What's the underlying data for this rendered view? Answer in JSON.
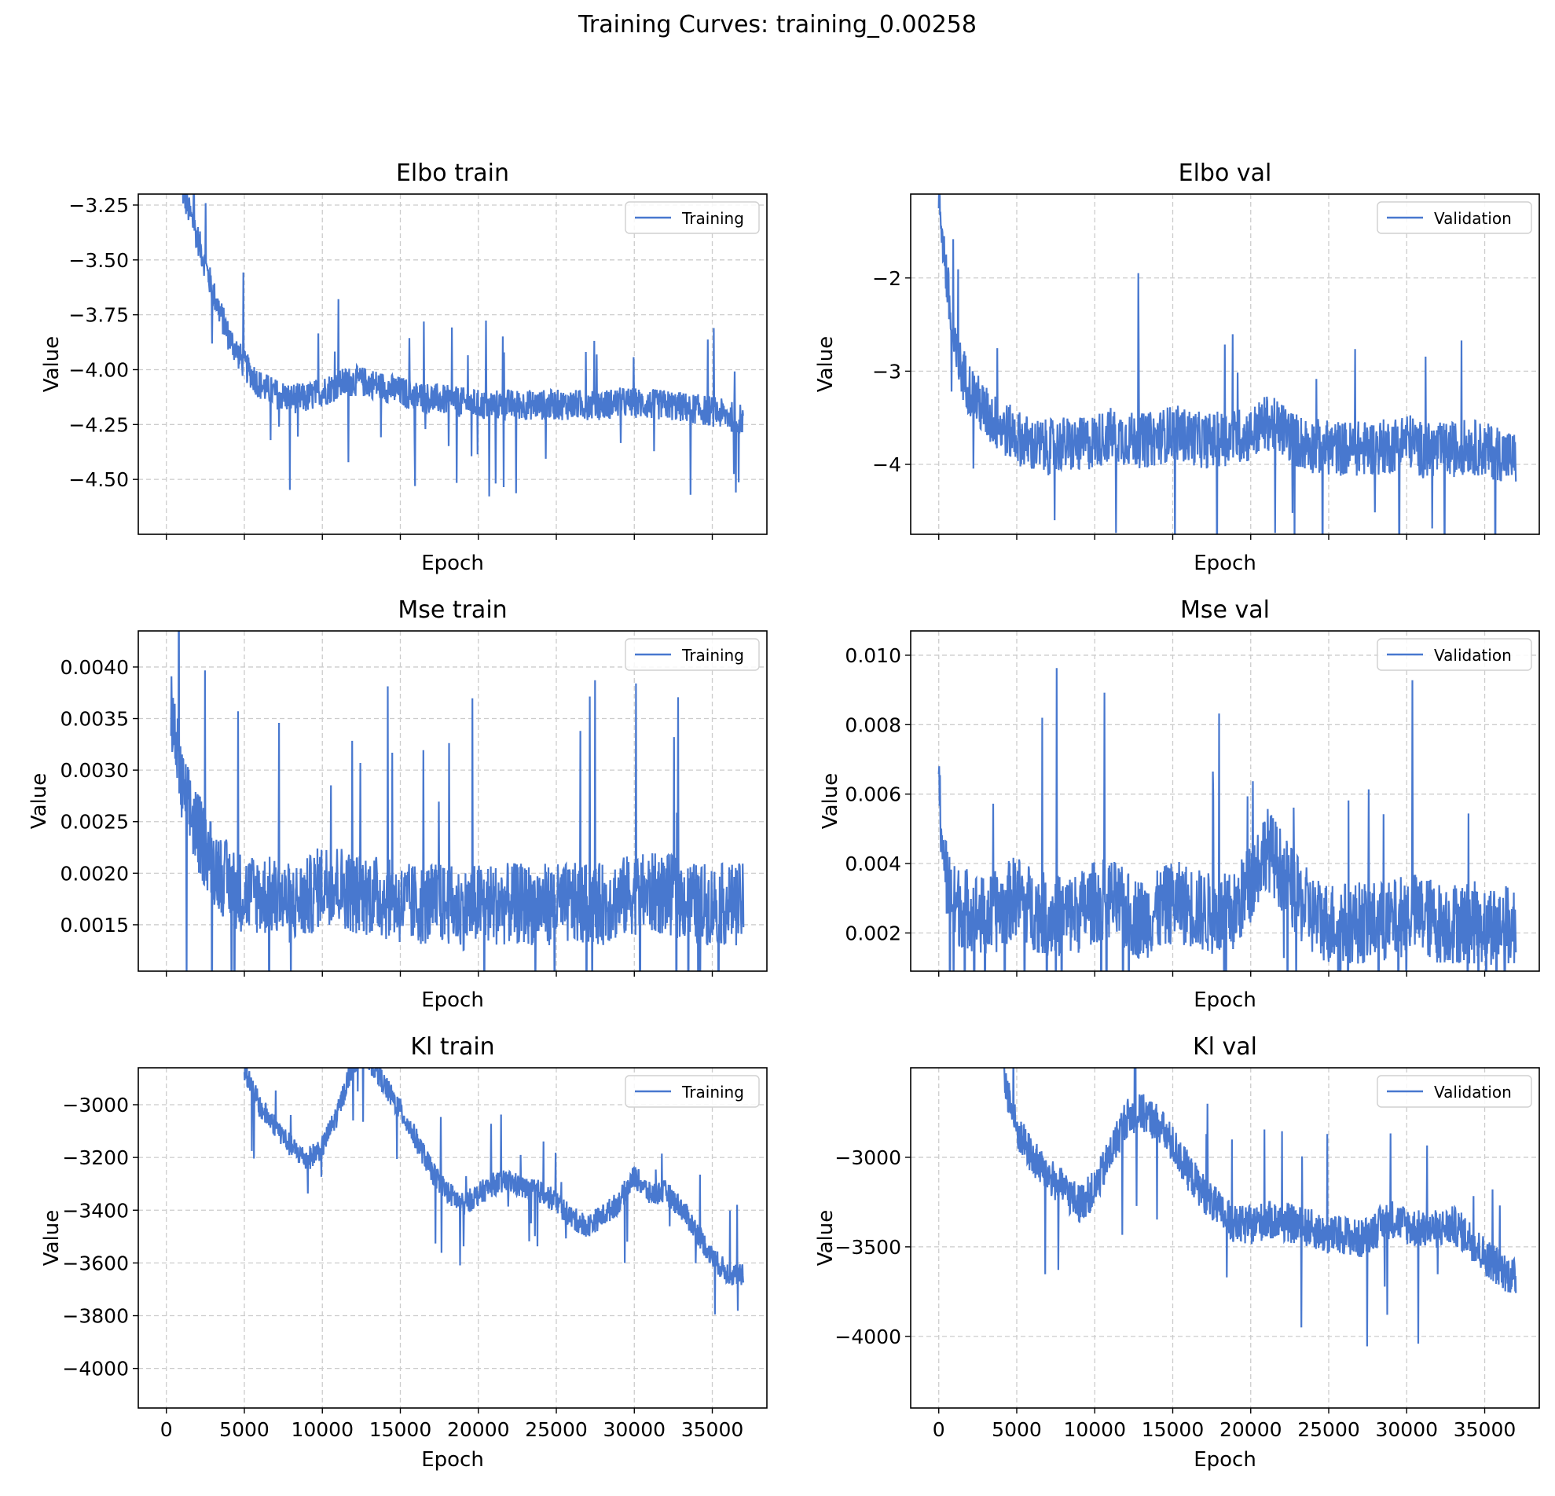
{
  "figure": {
    "suptitle": "Training Curves: training_0.00258",
    "line_color": "#4878cf",
    "grid_color": "#cccccc"
  },
  "chart_data": [
    {
      "type": "line",
      "title": "Elbo train",
      "xlabel": "Epoch",
      "ylabel": "Value",
      "xlim": [
        -1800,
        38500
      ],
      "ylim": [
        -4.75,
        -3.2
      ],
      "xticks": [
        0,
        5000,
        10000,
        15000,
        20000,
        25000,
        30000,
        35000
      ],
      "yticks": [
        -3.25,
        -3.5,
        -3.75,
        -4.0,
        -4.25,
        -4.5
      ],
      "ytick_labels": [
        "−3.25",
        "−3.50",
        "−3.75",
        "−4.00",
        "−4.25",
        "−4.50"
      ],
      "show_xtick_labels": false,
      "grid": true,
      "legend": "upper right",
      "series": [
        {
          "name": "Training",
          "x": [
            1000,
            2000,
            3000,
            4000,
            5000,
            6000,
            7000,
            8000,
            9000,
            10000,
            11000,
            12000,
            13000,
            14000,
            15000,
            16000,
            17000,
            18000,
            19000,
            20000,
            21000,
            22000,
            23000,
            24000,
            25000,
            26000,
            27000,
            28000,
            29000,
            30000,
            31000,
            32000,
            33000,
            34000,
            35000,
            36000,
            37000
          ],
          "y": [
            -3.18,
            -3.4,
            -3.65,
            -3.85,
            -3.98,
            -4.07,
            -4.11,
            -4.13,
            -4.13,
            -4.1,
            -4.07,
            -4.05,
            -4.06,
            -4.08,
            -4.1,
            -4.12,
            -4.13,
            -4.14,
            -4.15,
            -4.16,
            -4.16,
            -4.16,
            -4.16,
            -4.16,
            -4.16,
            -4.16,
            -4.16,
            -4.16,
            -4.15,
            -4.15,
            -4.16,
            -4.16,
            -4.17,
            -4.18,
            -4.19,
            -4.21,
            -4.23
          ],
          "band": 0.07
        }
      ]
    },
    {
      "type": "line",
      "title": "Elbo val",
      "xlabel": "Epoch",
      "ylabel": "Value",
      "xlim": [
        -1800,
        38500
      ],
      "ylim": [
        -4.75,
        -1.1
      ],
      "xticks": [
        0,
        5000,
        10000,
        15000,
        20000,
        25000,
        30000,
        35000
      ],
      "yticks": [
        -2,
        -3,
        -4
      ],
      "ytick_labels": [
        "−2",
        "−3",
        "−4"
      ],
      "show_xtick_labels": false,
      "grid": true,
      "legend": "upper right",
      "series": [
        {
          "name": "Validation",
          "x": [
            0,
            500,
            1000,
            2000,
            3000,
            4000,
            5000,
            6000,
            7000,
            8000,
            9000,
            10000,
            11000,
            12000,
            13000,
            14000,
            15000,
            16000,
            17000,
            18000,
            19000,
            20000,
            21000,
            22000,
            23000,
            24000,
            25000,
            26000,
            27000,
            28000,
            29000,
            30000,
            31000,
            32000,
            33000,
            34000,
            35000,
            36000,
            37000
          ],
          "y": [
            -1.1,
            -2.0,
            -2.8,
            -3.2,
            -3.45,
            -3.6,
            -3.7,
            -3.8,
            -3.82,
            -3.78,
            -3.8,
            -3.75,
            -3.68,
            -3.72,
            -3.75,
            -3.72,
            -3.65,
            -3.7,
            -3.75,
            -3.73,
            -3.7,
            -3.68,
            -3.55,
            -3.62,
            -3.75,
            -3.8,
            -3.82,
            -3.83,
            -3.83,
            -3.82,
            -3.8,
            -3.72,
            -3.85,
            -3.85,
            -3.84,
            -3.8,
            -3.85,
            -3.88,
            -3.95
          ],
          "band": 0.3
        }
      ]
    },
    {
      "type": "line",
      "title": "Mse train",
      "xlabel": "Epoch",
      "ylabel": "Value",
      "xlim": [
        -1800,
        38500
      ],
      "ylim": [
        0.00105,
        0.00435
      ],
      "xticks": [
        0,
        5000,
        10000,
        15000,
        20000,
        25000,
        30000,
        35000
      ],
      "yticks": [
        0.004,
        0.0035,
        0.003,
        0.0025,
        0.002,
        0.0015
      ],
      "ytick_labels": [
        "0.0040",
        "0.0035",
        "0.0030",
        "0.0025",
        "0.0020",
        "0.0015"
      ],
      "show_xtick_labels": false,
      "grid": true,
      "legend": "upper right",
      "series": [
        {
          "name": "Training",
          "x": [
            300,
            1000,
            2000,
            3000,
            4000,
            5000,
            6000,
            7000,
            8000,
            9000,
            10000,
            11000,
            12000,
            13000,
            14000,
            15000,
            16000,
            17000,
            18000,
            19000,
            20000,
            21000,
            22000,
            23000,
            24000,
            25000,
            26000,
            27000,
            28000,
            29000,
            30000,
            31000,
            32000,
            33000,
            34000,
            35000,
            36000,
            37000
          ],
          "y": [
            0.0036,
            0.0028,
            0.0024,
            0.0021,
            0.0019,
            0.0018,
            0.0018,
            0.00175,
            0.0017,
            0.00175,
            0.0019,
            0.0019,
            0.0018,
            0.0018,
            0.00175,
            0.0017,
            0.0017,
            0.0017,
            0.0017,
            0.00165,
            0.0017,
            0.0017,
            0.0017,
            0.0017,
            0.0017,
            0.0017,
            0.0017,
            0.0017,
            0.0017,
            0.00175,
            0.0018,
            0.0018,
            0.0018,
            0.00175,
            0.0017,
            0.0017,
            0.0017,
            0.0017
          ],
          "band": 0.0004
        }
      ]
    },
    {
      "type": "line",
      "title": "Mse val",
      "xlabel": "Epoch",
      "ylabel": "Value",
      "xlim": [
        -1800,
        38500
      ],
      "ylim": [
        0.0009,
        0.0107
      ],
      "xticks": [
        0,
        5000,
        10000,
        15000,
        20000,
        25000,
        30000,
        35000
      ],
      "yticks": [
        0.01,
        0.008,
        0.006,
        0.004,
        0.002
      ],
      "ytick_labels": [
        "0.010",
        "0.008",
        "0.006",
        "0.004",
        "0.002"
      ],
      "show_xtick_labels": false,
      "grid": true,
      "legend": "upper right",
      "series": [
        {
          "name": "Validation",
          "x": [
            0,
            500,
            1000,
            2000,
            3000,
            4000,
            5000,
            6000,
            7000,
            8000,
            9000,
            10000,
            11000,
            12000,
            13000,
            14000,
            15000,
            16000,
            17000,
            18000,
            19000,
            20000,
            21000,
            22000,
            23000,
            24000,
            25000,
            26000,
            27000,
            28000,
            29000,
            30000,
            31000,
            32000,
            33000,
            34000,
            35000,
            36000,
            37000
          ],
          "y": [
            0.006,
            0.0035,
            0.0028,
            0.0027,
            0.0024,
            0.0027,
            0.0031,
            0.0027,
            0.0025,
            0.0025,
            0.0026,
            0.0029,
            0.003,
            0.0026,
            0.0024,
            0.0026,
            0.0029,
            0.0028,
            0.0026,
            0.0025,
            0.0026,
            0.0035,
            0.0045,
            0.0038,
            0.003,
            0.0025,
            0.0023,
            0.0023,
            0.0023,
            0.0023,
            0.0023,
            0.0026,
            0.0025,
            0.0023,
            0.0023,
            0.0023,
            0.0023,
            0.0022,
            0.0022
          ],
          "band": 0.0012
        }
      ]
    },
    {
      "type": "line",
      "title": "Kl train",
      "xlabel": "Epoch",
      "ylabel": "Value",
      "xlim": [
        -1800,
        38500
      ],
      "ylim": [
        -4150,
        -2860
      ],
      "xticks": [
        0,
        5000,
        10000,
        15000,
        20000,
        25000,
        30000,
        35000
      ],
      "xtick_labels": [
        "0",
        "5000",
        "10000",
        "15000",
        "20000",
        "25000",
        "30000",
        "35000"
      ],
      "yticks": [
        -3000,
        -3200,
        -3400,
        -3600,
        -3800,
        -4000
      ],
      "ytick_labels": [
        "−3000",
        "−3200",
        "−3400",
        "−3600",
        "−3800",
        "−4000"
      ],
      "show_xtick_labels": true,
      "grid": true,
      "legend": "upper right",
      "series": [
        {
          "name": "Training",
          "x": [
            5000,
            6000,
            7000,
            8000,
            9000,
            10000,
            11000,
            11800,
            12500,
            13500,
            14000,
            15000,
            16000,
            17000,
            18000,
            19000,
            20000,
            21000,
            22000,
            23000,
            24000,
            25000,
            26000,
            27000,
            28000,
            29000,
            30000,
            31000,
            32000,
            33000,
            34000,
            35000,
            36000,
            37000
          ],
          "y": [
            -2860,
            -3010,
            -3080,
            -3160,
            -3210,
            -3160,
            -3030,
            -2870,
            -2800,
            -2870,
            -2930,
            -3020,
            -3130,
            -3250,
            -3330,
            -3380,
            -3340,
            -3300,
            -3290,
            -3320,
            -3330,
            -3370,
            -3430,
            -3460,
            -3420,
            -3370,
            -3270,
            -3340,
            -3330,
            -3390,
            -3480,
            -3580,
            -3640,
            -3650
          ],
          "band": 45
        }
      ]
    },
    {
      "type": "line",
      "title": "Kl val",
      "xlabel": "Epoch",
      "ylabel": "Value",
      "xlim": [
        -1800,
        38500
      ],
      "ylim": [
        -4400,
        -2500
      ],
      "xticks": [
        0,
        5000,
        10000,
        15000,
        20000,
        25000,
        30000,
        35000
      ],
      "xtick_labels": [
        "0",
        "5000",
        "10000",
        "15000",
        "20000",
        "25000",
        "30000",
        "35000"
      ],
      "yticks": [
        -3000,
        -3500,
        -4000
      ],
      "ytick_labels": [
        "−3000",
        "−3500",
        "−4000"
      ],
      "show_xtick_labels": true,
      "grid": true,
      "legend": "upper right",
      "series": [
        {
          "name": "Validation",
          "x": [
            4200,
            5000,
            6000,
            7000,
            8000,
            9000,
            10000,
            11000,
            12000,
            13000,
            14000,
            15000,
            16000,
            17000,
            18000,
            19000,
            20000,
            21000,
            22000,
            23000,
            24000,
            25000,
            26000,
            27000,
            28000,
            29000,
            30000,
            31000,
            32000,
            33000,
            34000,
            35000,
            36000,
            37000
          ],
          "y": [
            -2550,
            -2850,
            -3000,
            -3100,
            -3180,
            -3260,
            -3180,
            -2980,
            -2780,
            -2750,
            -2800,
            -2930,
            -3080,
            -3200,
            -3300,
            -3380,
            -3380,
            -3350,
            -3360,
            -3380,
            -3400,
            -3440,
            -3430,
            -3460,
            -3400,
            -3340,
            -3380,
            -3410,
            -3400,
            -3380,
            -3450,
            -3550,
            -3620,
            -3680
          ],
          "band": 110
        }
      ]
    }
  ]
}
